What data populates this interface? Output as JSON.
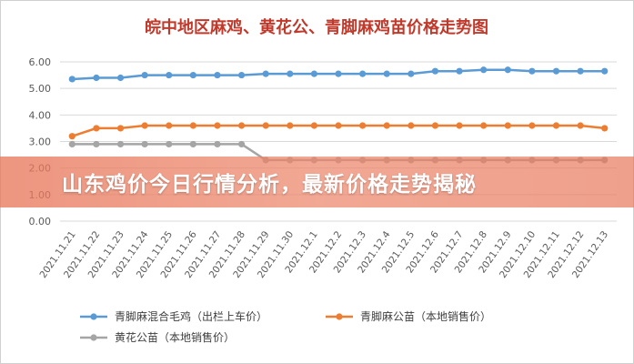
{
  "overlay_title": "山东鸡价今日行情分析，最新价格走势揭秘",
  "colors": {
    "title": "#c0392b",
    "series": [
      "#5b9bd5",
      "#ed7d31",
      "#a5a5a5"
    ],
    "grid": "#d9d9d9",
    "banner": "#e8785c"
  },
  "chart_data": {
    "type": "line",
    "title": "皖中地区麻鸡、黄花公、青脚麻鸡苗价格走势图",
    "xlabel": "",
    "ylabel": "",
    "ylim": [
      0,
      6
    ],
    "yticks": [
      "0.00",
      "1.00",
      "2.00",
      "3.00",
      "4.00",
      "5.00",
      "6.00"
    ],
    "grid": "horizontal",
    "legend_position": "bottom",
    "x": [
      "2021.11.21",
      "2021.11.22",
      "2021.11.23",
      "2021.11.24",
      "2021.11.25",
      "2021.11.26",
      "2021.11.27",
      "2021.11.28",
      "2021.11.29",
      "2021.11.30",
      "2021.12.1",
      "2021.12.2",
      "2021.12.3",
      "2021.12.4",
      "2021.12.5",
      "2021.12.6",
      "2021.12.7",
      "2021.12.8",
      "2021.12.9",
      "2021.12.10",
      "2021.12.11",
      "2021.12.12",
      "2021.12.13"
    ],
    "series": [
      {
        "name": "青脚麻混合毛鸡（出栏上车价）",
        "values": [
          5.35,
          5.4,
          5.4,
          5.5,
          5.5,
          5.5,
          5.5,
          5.5,
          5.55,
          5.55,
          5.55,
          5.55,
          5.55,
          5.55,
          5.55,
          5.65,
          5.65,
          5.7,
          5.7,
          5.65,
          5.65,
          5.65,
          5.65
        ]
      },
      {
        "name": "青脚麻公苗（本地销售价）",
        "values": [
          3.2,
          3.5,
          3.5,
          3.6,
          3.6,
          3.6,
          3.6,
          3.6,
          3.6,
          3.6,
          3.6,
          3.6,
          3.6,
          3.6,
          3.6,
          3.6,
          3.6,
          3.6,
          3.6,
          3.6,
          3.6,
          3.6,
          3.5
        ]
      },
      {
        "name": "黄花公苗（本地销售价）",
        "values": [
          2.9,
          2.9,
          2.9,
          2.9,
          2.9,
          2.9,
          2.9,
          2.9,
          2.3,
          2.3,
          2.3,
          2.3,
          2.3,
          2.3,
          2.3,
          2.3,
          2.3,
          2.3,
          2.3,
          2.3,
          2.3,
          2.3,
          2.3
        ]
      }
    ]
  }
}
